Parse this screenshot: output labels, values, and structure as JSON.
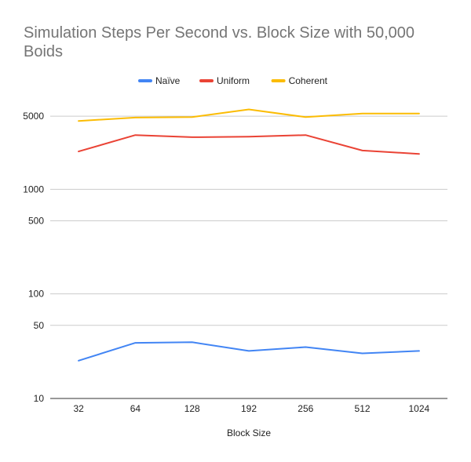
{
  "chart_data": {
    "type": "line",
    "title": "Simulation Steps Per Second vs. Block Size with 50,000 Boids",
    "xlabel": "Block Size",
    "ylabel": "",
    "y_scale": "log",
    "ylim": [
      10,
      10000
    ],
    "grid": true,
    "legend_position": "top",
    "categories": [
      "32",
      "64",
      "128",
      "192",
      "256",
      "512",
      "1024"
    ],
    "y_ticks": [
      10,
      50,
      100,
      500,
      1000,
      5000
    ],
    "y_tick_labels": [
      "10",
      "50",
      "100",
      "500",
      "1000",
      "5000"
    ],
    "series": [
      {
        "name": "Naïve",
        "color": "#4285F4",
        "values": [
          23,
          34,
          34.5,
          28.5,
          31,
          27,
          28.5
        ]
      },
      {
        "name": "Uniform",
        "color": "#EA4335",
        "values": [
          2300,
          3300,
          3150,
          3180,
          3300,
          2350,
          2180
        ]
      },
      {
        "name": "Coherent",
        "color": "#FBBC04",
        "values": [
          4500,
          4850,
          4900,
          5800,
          4900,
          5300,
          5300
        ]
      }
    ]
  }
}
